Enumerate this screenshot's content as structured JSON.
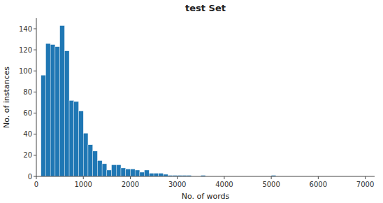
{
  "chart_data": {
    "type": "histogram",
    "title": "test Set",
    "x_label": "No. of words",
    "y_label": "No. of instances",
    "color": "#1f77b4",
    "bins": [
      0,
      100,
      200,
      300,
      400,
      500,
      600,
      700,
      800,
      900,
      1000,
      1100,
      1200,
      1300,
      1400,
      1500,
      1600,
      1700,
      1800,
      1900,
      2000,
      2100,
      2200,
      2300,
      2400,
      2500,
      2600,
      2700,
      2800,
      2900,
      3000,
      3100,
      3200,
      3300,
      3400,
      3500,
      3600,
      3700,
      3800,
      3900,
      4000,
      4100,
      4200,
      4300,
      4400,
      4500,
      4600,
      4700,
      4800,
      4900,
      5000,
      5100,
      5200,
      5300,
      5400,
      5500,
      5600,
      5700,
      5800,
      5900,
      6000,
      6100,
      6200,
      6300,
      6400,
      6500,
      6600,
      6700,
      6800,
      6900,
      7000,
      7100,
      7200
    ],
    "values": [
      0,
      96,
      126,
      125,
      123,
      143,
      119,
      72,
      71,
      62,
      41,
      30,
      24,
      15,
      12,
      6,
      11,
      11,
      8,
      7,
      7,
      6,
      4,
      6,
      3,
      3,
      3,
      2,
      1,
      1,
      1,
      1,
      1,
      0,
      0,
      1,
      0,
      0,
      0,
      0,
      0,
      0,
      0,
      0,
      0,
      0,
      0,
      0,
      0,
      0,
      1,
      0,
      0,
      0,
      0,
      0,
      0,
      0,
      0,
      0,
      0,
      0,
      0,
      0,
      0,
      0,
      0,
      0,
      0,
      0,
      0,
      0
    ],
    "xlim": [
      0,
      7200
    ],
    "ylim": [
      0,
      150
    ],
    "xticks": [
      0,
      1000,
      2000,
      3000,
      4000,
      5000,
      6000,
      7000
    ],
    "yticks": [
      0,
      20,
      40,
      60,
      80,
      100,
      120,
      140
    ],
    "grid": false
  }
}
